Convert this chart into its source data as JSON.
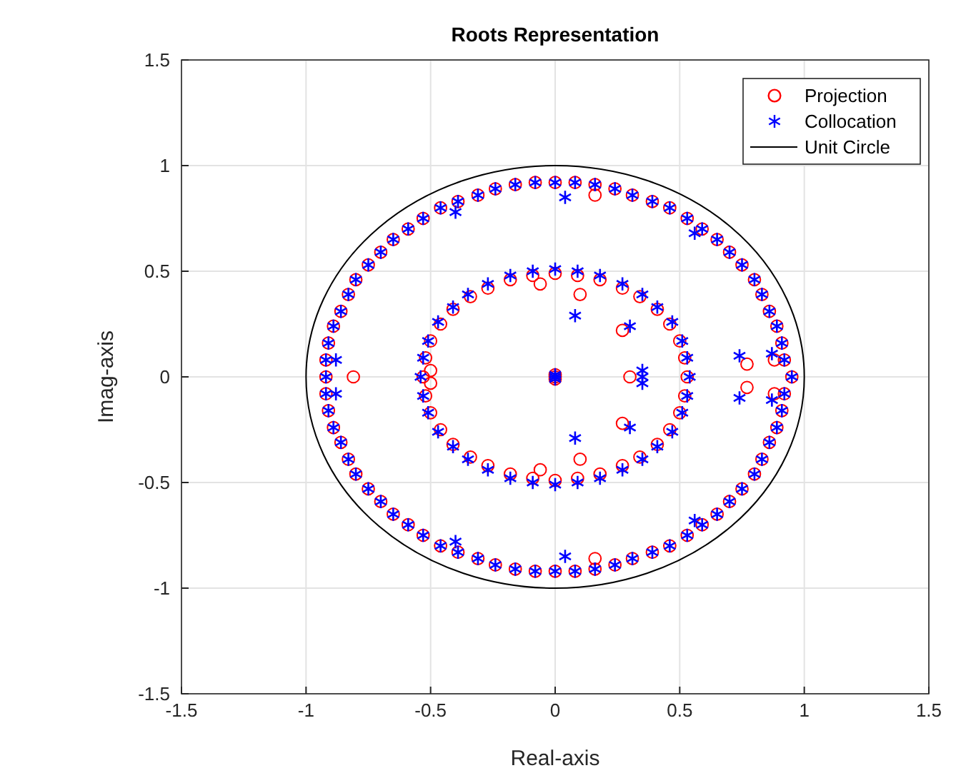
{
  "chart_data": {
    "type": "scatter",
    "title": "Roots Representation",
    "xlabel": "Real-axis",
    "ylabel": "Imag-axis",
    "xlim": [
      -1.5,
      1.5
    ],
    "ylim": [
      -1.5,
      1.5
    ],
    "xticks": [
      -1.5,
      -1,
      -0.5,
      0,
      0.5,
      1,
      1.5
    ],
    "yticks": [
      -1.5,
      -1,
      -0.5,
      0,
      0.5,
      1,
      1.5
    ],
    "grid": true,
    "legend": "top right",
    "annotations": [
      "Unit Circle"
    ],
    "series": [
      {
        "name": "Projection",
        "marker": "circle",
        "color": "#ff0000",
        "x": [
          0.95,
          0.92,
          0.91,
          0.89,
          0.86,
          0.83,
          0.8,
          0.75,
          0.7,
          0.65,
          0.59,
          0.53,
          0.46,
          0.39,
          0.31,
          0.24,
          0.16,
          0.08,
          0,
          -0.08,
          -0.16,
          -0.24,
          -0.31,
          -0.39,
          -0.46,
          -0.53,
          -0.59,
          -0.65,
          -0.7,
          -0.75,
          -0.8,
          -0.83,
          -0.86,
          -0.89,
          -0.91,
          -0.92,
          -0.92,
          -0.92,
          -0.91,
          -0.89,
          -0.86,
          -0.83,
          -0.8,
          -0.75,
          -0.7,
          -0.65,
          -0.59,
          -0.53,
          -0.46,
          -0.39,
          -0.31,
          -0.24,
          -0.16,
          -0.08,
          0,
          0.08,
          0.16,
          0.24,
          0.31,
          0.39,
          0.46,
          0.53,
          0.59,
          0.65,
          0.7,
          0.75,
          0.8,
          0.83,
          0.86,
          0.89,
          0.91,
          0.92,
          0.53,
          0.52,
          0.5,
          0.46,
          0.41,
          0.34,
          0.27,
          0.18,
          0.09,
          0,
          -0.09,
          -0.18,
          -0.27,
          -0.34,
          -0.41,
          -0.46,
          -0.5,
          -0.52,
          -0.53,
          -0.52,
          -0.5,
          -0.46,
          -0.41,
          -0.34,
          -0.27,
          -0.18,
          -0.09,
          0,
          0.09,
          0.18,
          0.27,
          0.34,
          0.41,
          0.46,
          0.5,
          0.52,
          0.16,
          0.16,
          -0.81,
          0.77,
          0.77,
          0.88,
          0.88,
          0.1,
          0.1,
          -0.06,
          -0.06,
          0.27,
          0.27,
          0.3,
          -0.5,
          -0.5,
          0,
          0,
          0
        ],
        "values": [
          0,
          0.08,
          0.16,
          0.24,
          0.31,
          0.39,
          0.46,
          0.53,
          0.59,
          0.65,
          0.7,
          0.75,
          0.8,
          0.83,
          0.86,
          0.89,
          0.91,
          0.92,
          0.92,
          0.92,
          0.91,
          0.89,
          0.86,
          0.83,
          0.8,
          0.75,
          0.7,
          0.65,
          0.59,
          0.53,
          0.46,
          0.39,
          0.31,
          0.24,
          0.16,
          0.08,
          0,
          -0.08,
          -0.16,
          -0.24,
          -0.31,
          -0.39,
          -0.46,
          -0.53,
          -0.59,
          -0.65,
          -0.7,
          -0.75,
          -0.8,
          -0.83,
          -0.86,
          -0.89,
          -0.91,
          -0.92,
          -0.92,
          -0.92,
          -0.91,
          -0.89,
          -0.86,
          -0.83,
          -0.8,
          -0.75,
          -0.7,
          -0.65,
          -0.59,
          -0.53,
          -0.46,
          -0.39,
          -0.31,
          -0.24,
          -0.16,
          -0.08,
          0,
          0.09,
          0.17,
          0.25,
          0.32,
          0.38,
          0.42,
          0.46,
          0.48,
          0.49,
          0.48,
          0.46,
          0.42,
          0.38,
          0.32,
          0.25,
          0.17,
          0.09,
          0,
          -0.09,
          -0.17,
          -0.25,
          -0.32,
          -0.38,
          -0.42,
          -0.46,
          -0.48,
          -0.49,
          -0.48,
          -0.46,
          -0.42,
          -0.38,
          -0.32,
          -0.25,
          -0.17,
          -0.09,
          0.86,
          -0.86,
          0,
          0.06,
          -0.05,
          0.08,
          -0.08,
          0.39,
          -0.39,
          0.44,
          -0.44,
          0.22,
          -0.22,
          0,
          0.03,
          -0.03,
          0,
          0.01,
          -0.01
        ]
      },
      {
        "name": "Collocation",
        "marker": "cross",
        "color": "#0000ff",
        "x": [
          0.95,
          0.92,
          0.91,
          0.89,
          0.86,
          0.83,
          0.8,
          0.75,
          0.7,
          0.65,
          0.59,
          0.53,
          0.46,
          0.39,
          0.31,
          0.24,
          0.16,
          0.08,
          0,
          -0.08,
          -0.16,
          -0.24,
          -0.31,
          -0.39,
          -0.46,
          -0.53,
          -0.59,
          -0.65,
          -0.7,
          -0.75,
          -0.8,
          -0.83,
          -0.86,
          -0.89,
          -0.91,
          -0.92,
          -0.92,
          -0.92,
          -0.91,
          -0.89,
          -0.86,
          -0.83,
          -0.8,
          -0.75,
          -0.7,
          -0.65,
          -0.59,
          -0.53,
          -0.46,
          -0.39,
          -0.31,
          -0.24,
          -0.16,
          -0.08,
          0,
          0.08,
          0.16,
          0.24,
          0.31,
          0.39,
          0.46,
          0.53,
          0.59,
          0.65,
          0.7,
          0.75,
          0.8,
          0.83,
          0.86,
          0.89,
          0.91,
          0.92,
          0.54,
          0.53,
          0.51,
          0.47,
          0.41,
          0.35,
          0.27,
          0.18,
          0.09,
          0,
          -0.09,
          -0.18,
          -0.27,
          -0.35,
          -0.41,
          -0.47,
          -0.51,
          -0.53,
          -0.54,
          -0.53,
          -0.51,
          -0.47,
          -0.41,
          -0.35,
          -0.27,
          -0.18,
          -0.09,
          0,
          0.09,
          0.18,
          0.27,
          0.35,
          0.41,
          0.47,
          0.51,
          0.53,
          0.04,
          0.04,
          -0.4,
          -0.4,
          0.56,
          0.56,
          -0.88,
          -0.88,
          0.74,
          0.74,
          0.87,
          0.87,
          0.08,
          0.08,
          0.3,
          0.3,
          0.35,
          0.35,
          0.35,
          0,
          0,
          0
        ],
        "values": [
          0,
          0.08,
          0.16,
          0.24,
          0.31,
          0.39,
          0.46,
          0.53,
          0.59,
          0.65,
          0.7,
          0.75,
          0.8,
          0.83,
          0.86,
          0.89,
          0.91,
          0.92,
          0.92,
          0.92,
          0.91,
          0.89,
          0.86,
          0.83,
          0.8,
          0.75,
          0.7,
          0.65,
          0.59,
          0.53,
          0.46,
          0.39,
          0.31,
          0.24,
          0.16,
          0.08,
          0,
          -0.08,
          -0.16,
          -0.24,
          -0.31,
          -0.39,
          -0.46,
          -0.53,
          -0.59,
          -0.65,
          -0.7,
          -0.75,
          -0.8,
          -0.83,
          -0.86,
          -0.89,
          -0.91,
          -0.92,
          -0.92,
          -0.92,
          -0.91,
          -0.89,
          -0.86,
          -0.83,
          -0.8,
          -0.75,
          -0.7,
          -0.65,
          -0.59,
          -0.53,
          -0.46,
          -0.39,
          -0.31,
          -0.24,
          -0.16,
          -0.08,
          0,
          0.09,
          0.17,
          0.26,
          0.33,
          0.39,
          0.44,
          0.48,
          0.5,
          0.51,
          0.5,
          0.48,
          0.44,
          0.39,
          0.33,
          0.26,
          0.17,
          0.09,
          0,
          -0.09,
          -0.17,
          -0.26,
          -0.33,
          -0.39,
          -0.44,
          -0.48,
          -0.5,
          -0.51,
          -0.5,
          -0.48,
          -0.44,
          -0.39,
          -0.33,
          -0.26,
          -0.17,
          -0.09,
          0.85,
          -0.85,
          0.78,
          -0.78,
          0.68,
          -0.68,
          0.08,
          -0.08,
          0.1,
          -0.1,
          0.11,
          -0.11,
          0.29,
          -0.29,
          0.24,
          -0.24,
          0,
          0.03,
          -0.03,
          0,
          0.01,
          -0.01
        ]
      }
    ]
  }
}
